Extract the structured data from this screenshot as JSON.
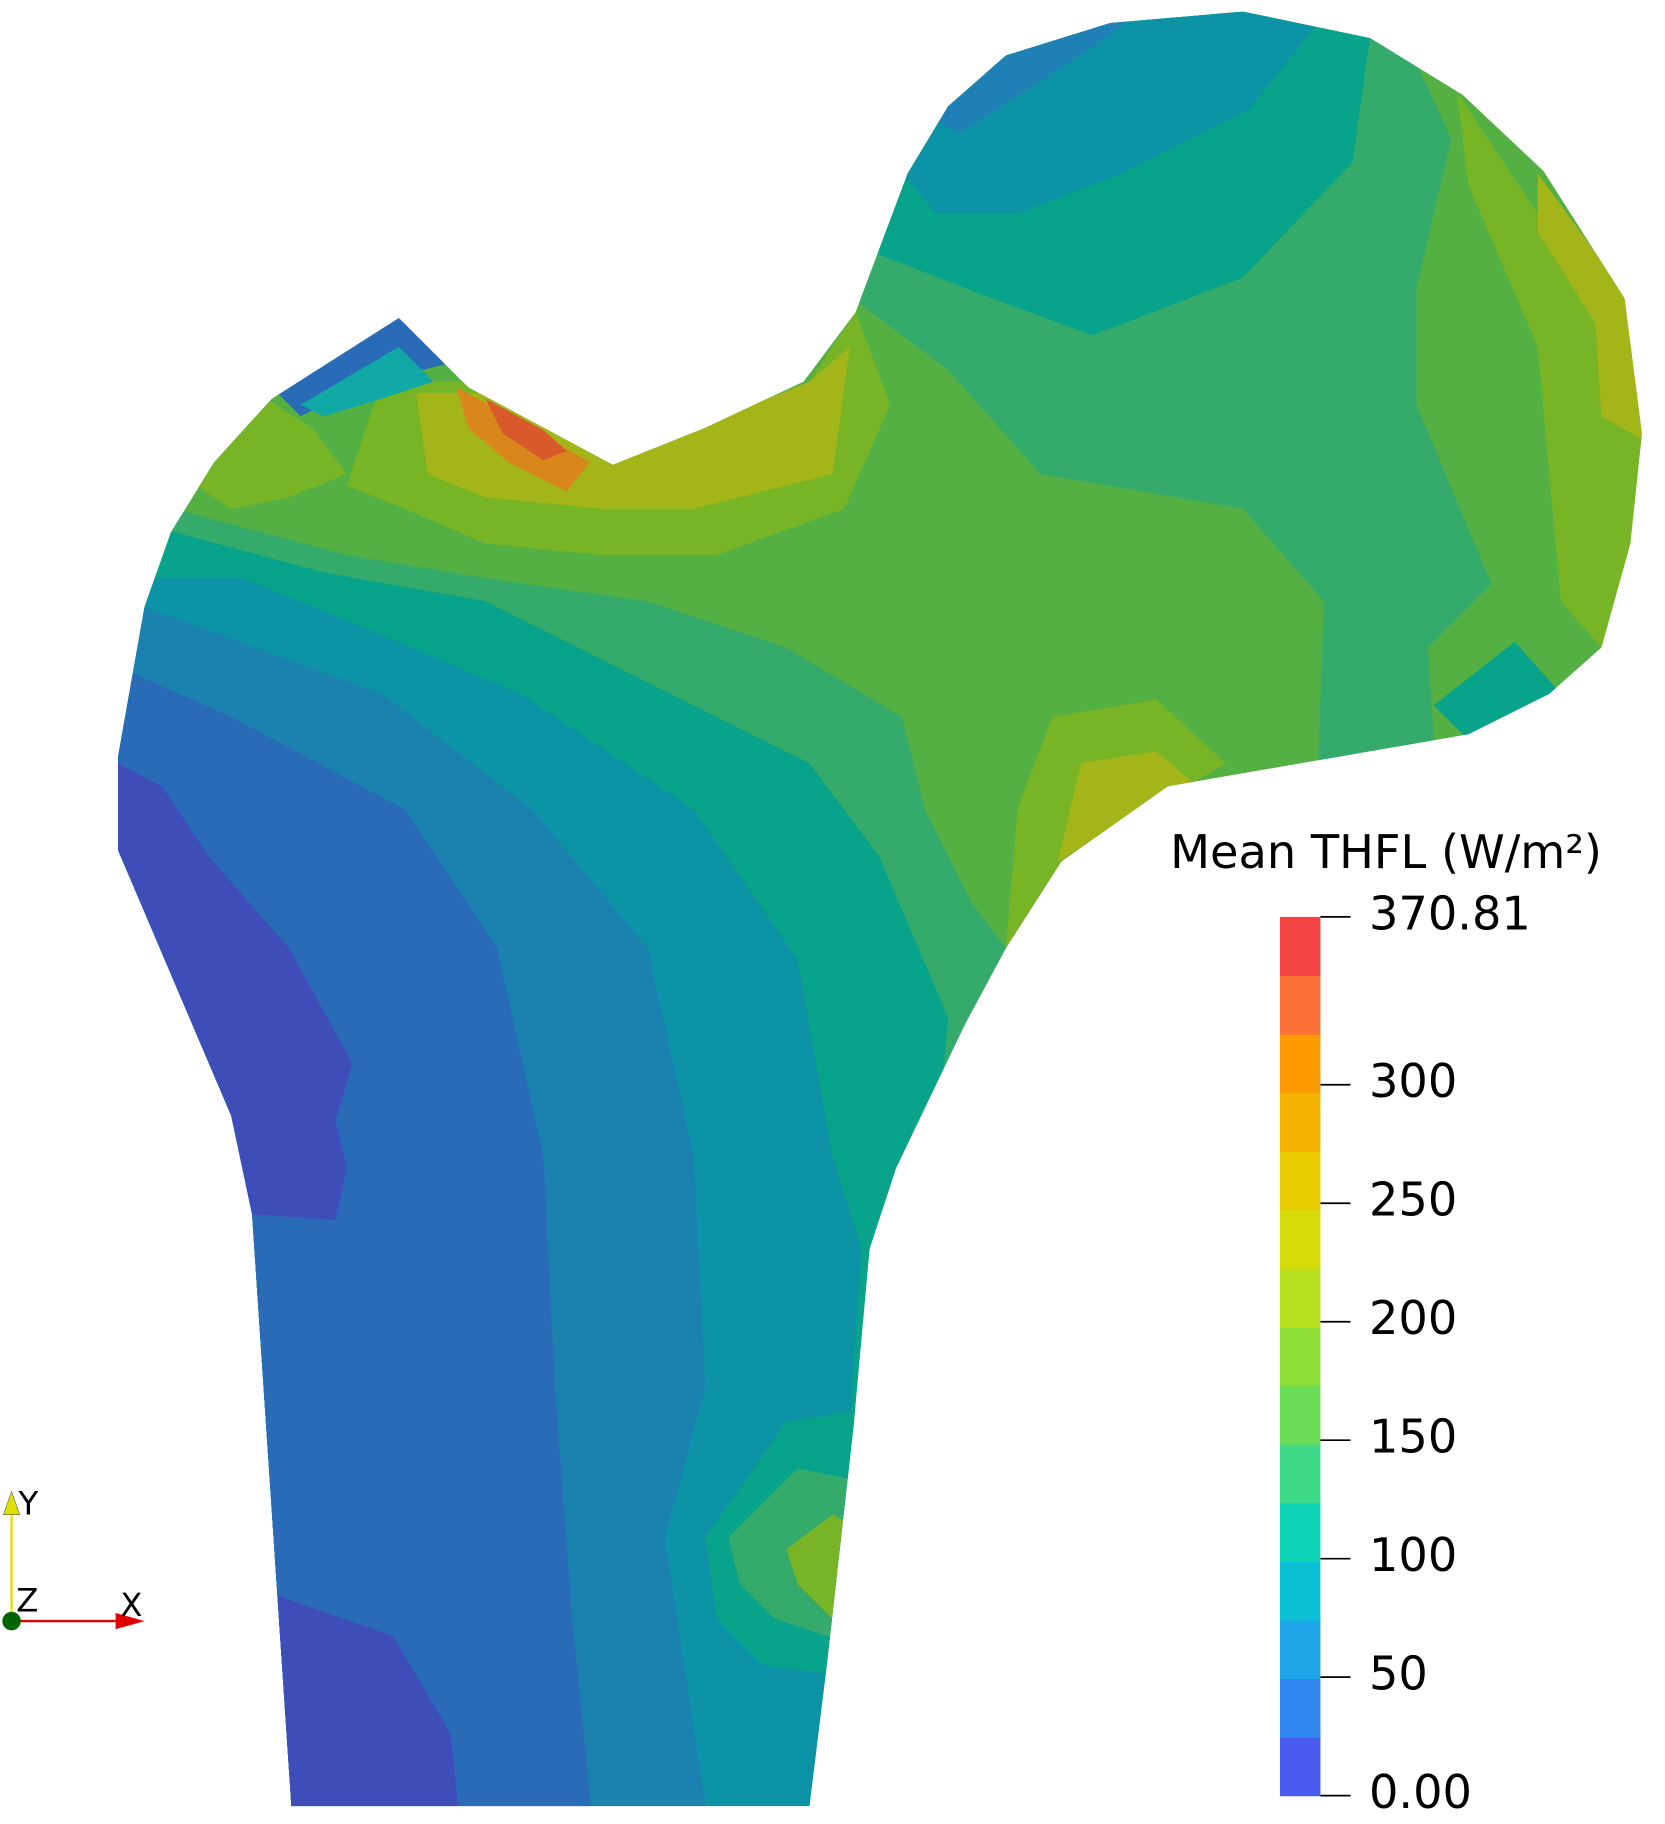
{
  "colorbar": {
    "title": "Mean THFL (W/m²)",
    "range": [
      0,
      370.81
    ],
    "ticks": [
      {
        "value": 0,
        "label": "0.00"
      },
      50,
      100,
      150,
      200,
      250,
      300,
      370.81
    ],
    "colors": [
      "#4a5cf0",
      "#2e86ee",
      "#1ea5e8",
      "#0cc1d6",
      "#0ed5b8",
      "#3fd98a",
      "#6bdc55",
      "#8ddf37",
      "#b7e01e",
      "#d6dc0a",
      "#e8cc00",
      "#f4b300",
      "#fd9a00",
      "#fb7137",
      "#f54444"
    ]
  },
  "axes_widget": {
    "x": "X",
    "y": "Y",
    "z": "Z"
  }
}
